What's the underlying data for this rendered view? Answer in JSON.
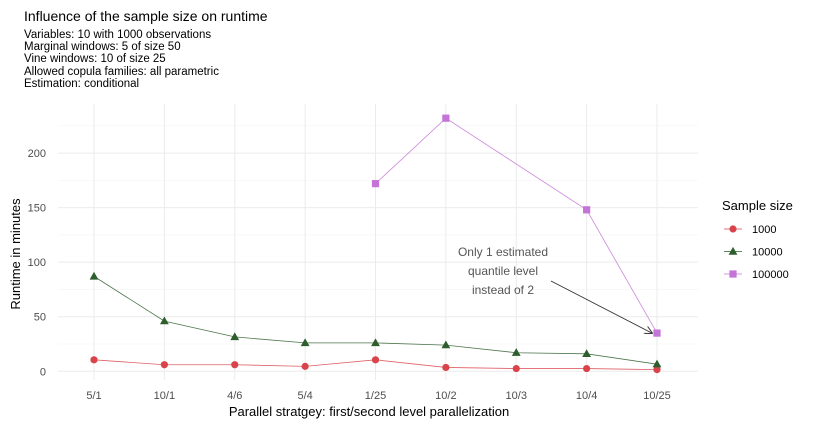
{
  "title": "Influence of the sample size on runtime",
  "subtitle_lines": [
    "Variables: 10 with 1000 observations",
    "Marginal windows: 5 of size 50",
    "Vine windows: 10 of size 25",
    "Allowed copula families: all parametric",
    "Estimation: conditional"
  ],
  "chart_data": {
    "type": "line",
    "title": "Influence of the sample size on runtime",
    "xlabel": "Parallel stratgey: first/second level parallelization",
    "ylabel": "Runtime in minutes",
    "categories": [
      "5/1",
      "10/1",
      "4/6",
      "5/4",
      "1/25",
      "10/2",
      "10/3",
      "10/4",
      "10/25"
    ],
    "y_ticks": [
      0,
      50,
      100,
      150,
      200
    ],
    "ylim": [
      -8,
      245
    ],
    "grid": true,
    "legend": {
      "title": "Sample size",
      "position": "right"
    },
    "series": [
      {
        "name": "1000",
        "color": "#d9444b",
        "marker": "circle",
        "values": [
          10.5,
          6,
          6,
          4.5,
          10.5,
          3.5,
          2.5,
          2.5,
          1.5
        ]
      },
      {
        "name": "10000",
        "color": "#2e5e2e",
        "marker": "triangle",
        "values": [
          87,
          46,
          31.5,
          26,
          26,
          24,
          17,
          16,
          6.5
        ]
      },
      {
        "name": "100000",
        "color": "#c473d6",
        "marker": "square",
        "values": [
          null,
          null,
          null,
          null,
          172,
          232,
          null,
          148,
          35
        ]
      }
    ],
    "annotation": {
      "text_lines": [
        "Only 1 estimated",
        "quantile level",
        "instead of 2"
      ],
      "points_to": {
        "category": "10/25",
        "series": "100000"
      }
    }
  }
}
